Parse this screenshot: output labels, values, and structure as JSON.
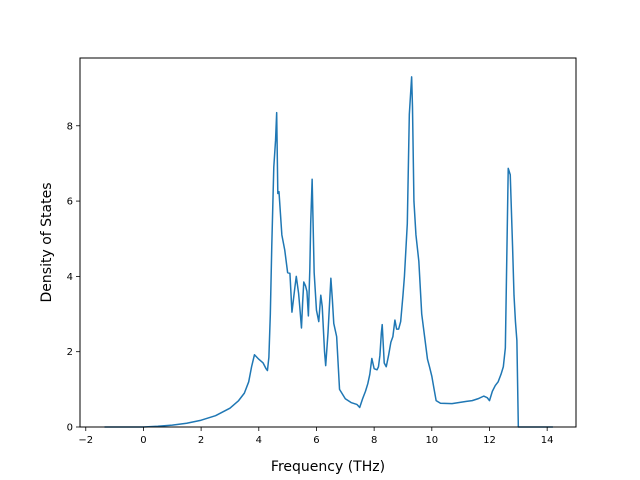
{
  "chart_data": {
    "type": "line",
    "title": "",
    "xlabel": "Frequency (THz)",
    "ylabel": "Density of States",
    "xlim": [
      -2.2,
      15.0
    ],
    "ylim": [
      0,
      9.8
    ],
    "xticks": [
      -2,
      0,
      2,
      4,
      6,
      8,
      10,
      12,
      14
    ],
    "xtick_labels": [
      "−2",
      "0",
      "2",
      "4",
      "6",
      "8",
      "10",
      "12",
      "14"
    ],
    "yticks": [
      0,
      2,
      4,
      6,
      8
    ],
    "ytick_labels": [
      "0",
      "2",
      "4",
      "6",
      "8"
    ],
    "grid": false,
    "legend": "none",
    "series": [
      {
        "color": "#1f77b4",
        "x": [
          -1.35,
          0.0,
          0.5,
          1.0,
          1.5,
          2.0,
          2.5,
          3.0,
          3.3,
          3.5,
          3.65,
          3.75,
          3.85,
          4.0,
          4.15,
          4.25,
          4.3,
          4.35,
          4.4,
          4.45,
          4.52,
          4.58,
          4.62,
          4.66,
          4.7,
          4.8,
          4.9,
          5.0,
          5.08,
          5.15,
          5.25,
          5.3,
          5.38,
          5.42,
          5.48,
          5.52,
          5.56,
          5.62,
          5.67,
          5.72,
          5.77,
          5.8,
          5.85,
          5.92,
          6.0,
          6.08,
          6.15,
          6.2,
          6.28,
          6.32,
          6.4,
          6.5,
          6.55,
          6.6,
          6.7,
          6.8,
          7.0,
          7.2,
          7.4,
          7.5,
          7.6,
          7.7,
          7.78,
          7.85,
          7.92,
          8.0,
          8.1,
          8.15,
          8.2,
          8.25,
          8.28,
          8.35,
          8.42,
          8.5,
          8.58,
          8.65,
          8.72,
          8.78,
          8.85,
          8.92,
          9.0,
          9.05,
          9.15,
          9.22,
          9.3,
          9.33,
          9.38,
          9.45,
          9.55,
          9.65,
          9.75,
          9.85,
          9.92,
          10.0,
          10.08,
          10.15,
          10.3,
          10.7,
          11.2,
          11.4,
          11.6,
          11.8,
          11.92,
          12.0,
          12.1,
          12.2,
          12.3,
          12.4,
          12.48,
          12.55,
          12.6,
          12.65,
          12.72,
          12.8,
          12.85,
          12.9,
          12.95,
          13.0,
          13.5,
          14.0,
          14.2
        ],
        "y": [
          0.0,
          0.0,
          0.02,
          0.05,
          0.1,
          0.18,
          0.3,
          0.5,
          0.7,
          0.9,
          1.2,
          1.6,
          1.92,
          1.8,
          1.7,
          1.55,
          1.5,
          1.85,
          3.0,
          4.8,
          6.9,
          7.6,
          8.35,
          6.2,
          6.25,
          5.1,
          4.7,
          4.1,
          4.08,
          3.05,
          3.7,
          4.0,
          3.55,
          3.2,
          2.63,
          3.3,
          3.85,
          3.75,
          3.6,
          2.95,
          4.2,
          5.4,
          6.58,
          4.1,
          3.1,
          2.8,
          3.5,
          3.2,
          2.0,
          1.63,
          2.5,
          3.95,
          3.4,
          2.75,
          2.4,
          1.0,
          0.75,
          0.65,
          0.6,
          0.52,
          0.75,
          0.95,
          1.15,
          1.4,
          1.82,
          1.55,
          1.52,
          1.6,
          1.9,
          2.5,
          2.72,
          1.7,
          1.6,
          1.9,
          2.25,
          2.4,
          2.84,
          2.6,
          2.6,
          2.8,
          3.5,
          4.0,
          5.4,
          8.3,
          9.3,
          8.5,
          6.0,
          5.1,
          4.4,
          3.0,
          2.4,
          1.8,
          1.6,
          1.35,
          1.0,
          0.7,
          0.63,
          0.62,
          0.68,
          0.7,
          0.75,
          0.82,
          0.78,
          0.7,
          0.95,
          1.1,
          1.2,
          1.4,
          1.6,
          2.1,
          4.5,
          6.87,
          6.7,
          4.8,
          3.5,
          2.8,
          2.3,
          0.0,
          0.0,
          0.0,
          0.0
        ]
      }
    ]
  }
}
